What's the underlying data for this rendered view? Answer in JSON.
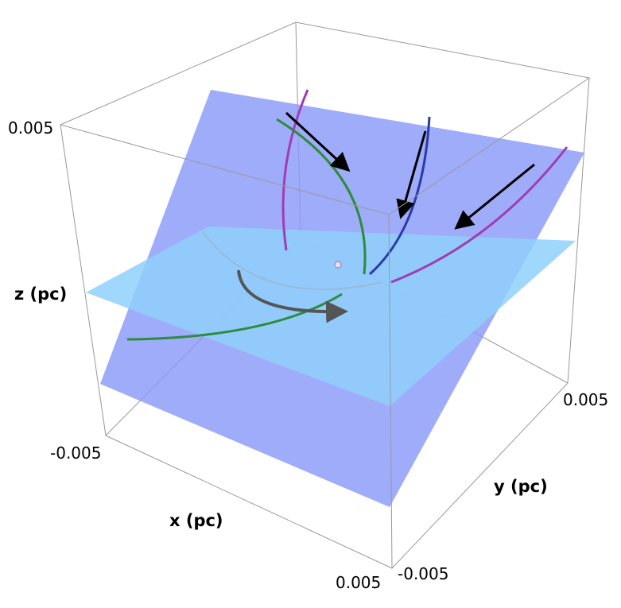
{
  "axes": {
    "x": {
      "label": "x (pc)",
      "ticks": [
        "-0.005",
        "0.005"
      ]
    },
    "y": {
      "label": "y (pc)",
      "ticks": [
        "-0.005",
        "0.005"
      ]
    },
    "z": {
      "label": "z (pc)",
      "ticks": [
        "0.005"
      ]
    }
  }
}
